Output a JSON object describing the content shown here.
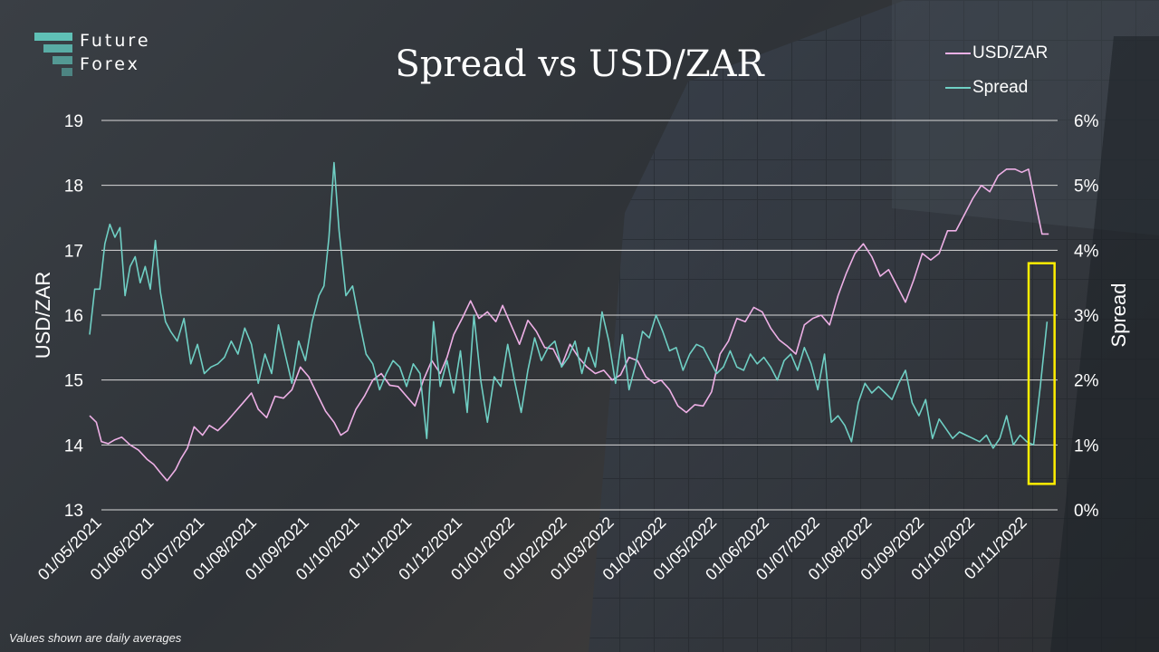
{
  "logo": {
    "line1": "Future",
    "line2": "Forex"
  },
  "footnote": "Values shown are daily averages",
  "colors": {
    "usdzar": "#eeb0e6",
    "spread": "#6fcfc4",
    "grid": "#d9d9d9",
    "highlight": "#ffee00"
  },
  "chart_data": {
    "type": "line",
    "title": "Spread vs USD/ZAR",
    "ylabel": "USD/ZAR",
    "y2label": "Spread",
    "ylim": [
      13,
      19
    ],
    "y2lim": [
      0,
      6
    ],
    "yticks": [
      "13",
      "14",
      "15",
      "16",
      "17",
      "18",
      "19"
    ],
    "y2ticks": [
      "0%",
      "1%",
      "2%",
      "3%",
      "4%",
      "5%",
      "6%"
    ],
    "x_domain": [
      "2021-05-01",
      "2022-12-01"
    ],
    "xticks": [
      "01/05/2021",
      "01/06/2021",
      "01/07/2021",
      "01/08/2021",
      "01/09/2021",
      "01/10/2021",
      "01/11/2021",
      "01/12/2021",
      "01/01/2022",
      "01/02/2022",
      "01/03/2022",
      "01/04/2022",
      "01/05/2022",
      "01/06/2022",
      "01/07/2022",
      "01/08/2022",
      "01/09/2022",
      "01/10/2022",
      "01/11/2022"
    ],
    "legend_position": "top-right",
    "grid": true,
    "highlight": {
      "x_range": [
        "2022-11-01",
        "2022-11-18"
      ],
      "y2_range": [
        0.4,
        3.8
      ]
    },
    "series": [
      {
        "name": "USD/ZAR",
        "axis": "left",
        "color": "#eeb0e6",
        "x": [
          "2021-05-01",
          "2021-05-05",
          "2021-05-08",
          "2021-05-12",
          "2021-05-16",
          "2021-05-20",
          "2021-05-25",
          "2021-05-30",
          "2021-06-04",
          "2021-06-08",
          "2021-06-12",
          "2021-06-16",
          "2021-06-21",
          "2021-06-24",
          "2021-06-28",
          "2021-07-02",
          "2021-07-07",
          "2021-07-11",
          "2021-07-16",
          "2021-07-21",
          "2021-07-26",
          "2021-07-31",
          "2021-08-05",
          "2021-08-09",
          "2021-08-14",
          "2021-08-19",
          "2021-08-24",
          "2021-08-29",
          "2021-09-03",
          "2021-09-08",
          "2021-09-13",
          "2021-09-18",
          "2021-09-23",
          "2021-09-27",
          "2021-10-01",
          "2021-10-06",
          "2021-10-11",
          "2021-10-16",
          "2021-10-21",
          "2021-10-26",
          "2021-10-31",
          "2021-11-05",
          "2021-11-10",
          "2021-11-15",
          "2021-11-20",
          "2021-11-25",
          "2021-11-29",
          "2021-12-03",
          "2021-12-08",
          "2021-12-13",
          "2021-12-18",
          "2021-12-23",
          "2021-12-28",
          "2022-01-01",
          "2022-01-06",
          "2022-01-11",
          "2022-01-16",
          "2022-01-21",
          "2022-01-26",
          "2022-01-31",
          "2022-02-05",
          "2022-02-10",
          "2022-02-15",
          "2022-02-20",
          "2022-02-25",
          "2022-03-02",
          "2022-03-07",
          "2022-03-12",
          "2022-03-17",
          "2022-03-22",
          "2022-03-27",
          "2022-04-01",
          "2022-04-05",
          "2022-04-10",
          "2022-04-15",
          "2022-04-20",
          "2022-04-25",
          "2022-04-30",
          "2022-05-05",
          "2022-05-10",
          "2022-05-15",
          "2022-05-20",
          "2022-05-25",
          "2022-05-30",
          "2022-06-04",
          "2022-06-09",
          "2022-06-14",
          "2022-06-19",
          "2022-06-24",
          "2022-06-29",
          "2022-07-04",
          "2022-07-09",
          "2022-07-14",
          "2022-07-19",
          "2022-07-24",
          "2022-07-29",
          "2022-08-03",
          "2022-08-08",
          "2022-08-13",
          "2022-08-18",
          "2022-08-23",
          "2022-08-28",
          "2022-09-02",
          "2022-09-07",
          "2022-09-12",
          "2022-09-17",
          "2022-09-22",
          "2022-09-27",
          "2022-10-02",
          "2022-10-07",
          "2022-10-12",
          "2022-10-17",
          "2022-10-22",
          "2022-10-27",
          "2022-11-01",
          "2022-11-05",
          "2022-11-09",
          "2022-11-13",
          "2022-11-17",
          "2022-11-21"
        ],
        "values": [
          14.45,
          14.35,
          14.05,
          14.02,
          14.08,
          14.12,
          14.0,
          13.92,
          13.78,
          13.7,
          13.57,
          13.45,
          13.62,
          13.78,
          13.95,
          14.28,
          14.15,
          14.3,
          14.22,
          14.35,
          14.5,
          14.65,
          14.8,
          14.55,
          14.42,
          14.75,
          14.72,
          14.85,
          15.2,
          15.05,
          14.78,
          14.52,
          14.35,
          14.15,
          14.22,
          14.55,
          14.75,
          15.0,
          15.1,
          14.92,
          14.9,
          14.75,
          14.6,
          15.0,
          15.3,
          15.1,
          15.35,
          15.7,
          15.95,
          16.22,
          15.95,
          16.05,
          15.9,
          16.15,
          15.85,
          15.55,
          15.92,
          15.75,
          15.5,
          15.48,
          15.22,
          15.55,
          15.35,
          15.2,
          15.1,
          15.15,
          15.0,
          15.08,
          15.35,
          15.3,
          15.05,
          14.95,
          15.0,
          14.85,
          14.6,
          14.5,
          14.62,
          14.6,
          14.82,
          15.4,
          15.6,
          15.95,
          15.9,
          16.12,
          16.05,
          15.8,
          15.62,
          15.52,
          15.4,
          15.85,
          15.95,
          16.0,
          15.85,
          16.3,
          16.65,
          16.95,
          17.1,
          16.9,
          16.6,
          16.7,
          16.45,
          16.2,
          16.55,
          16.95,
          16.85,
          16.95,
          17.3,
          17.3,
          17.55,
          17.8,
          18.0,
          17.9,
          18.15,
          18.25,
          18.25,
          18.2,
          18.25,
          17.75,
          17.25,
          17.25
        ]
      },
      {
        "name": "Spread",
        "axis": "right",
        "color": "#6fcfc4",
        "x": [
          "2021-05-01",
          "2021-05-04",
          "2021-05-07",
          "2021-05-10",
          "2021-05-13",
          "2021-05-16",
          "2021-05-19",
          "2021-05-22",
          "2021-05-25",
          "2021-05-28",
          "2021-05-31",
          "2021-06-03",
          "2021-06-06",
          "2021-06-09",
          "2021-06-12",
          "2021-06-15",
          "2021-06-18",
          "2021-06-22",
          "2021-06-26",
          "2021-06-30",
          "2021-07-04",
          "2021-07-08",
          "2021-07-12",
          "2021-07-16",
          "2021-07-20",
          "2021-07-24",
          "2021-07-28",
          "2021-08-01",
          "2021-08-05",
          "2021-08-09",
          "2021-08-13",
          "2021-08-17",
          "2021-08-21",
          "2021-08-25",
          "2021-08-29",
          "2021-09-02",
          "2021-09-06",
          "2021-09-10",
          "2021-09-14",
          "2021-09-17",
          "2021-09-20",
          "2021-09-23",
          "2021-09-26",
          "2021-09-30",
          "2021-10-04",
          "2021-10-08",
          "2021-10-12",
          "2021-10-16",
          "2021-10-20",
          "2021-10-24",
          "2021-10-28",
          "2021-11-01",
          "2021-11-05",
          "2021-11-09",
          "2021-11-13",
          "2021-11-17",
          "2021-11-21",
          "2021-11-25",
          "2021-11-29",
          "2021-12-03",
          "2021-12-07",
          "2021-12-11",
          "2021-12-15",
          "2021-12-19",
          "2021-12-23",
          "2021-12-27",
          "2021-12-31",
          "2022-01-04",
          "2022-01-08",
          "2022-01-12",
          "2022-01-16",
          "2022-01-20",
          "2022-01-24",
          "2022-01-28",
          "2022-02-01",
          "2022-02-05",
          "2022-02-09",
          "2022-02-13",
          "2022-02-17",
          "2022-02-21",
          "2022-02-25",
          "2022-03-01",
          "2022-03-05",
          "2022-03-09",
          "2022-03-13",
          "2022-03-17",
          "2022-03-21",
          "2022-03-25",
          "2022-03-29",
          "2022-04-02",
          "2022-04-06",
          "2022-04-10",
          "2022-04-14",
          "2022-04-18",
          "2022-04-22",
          "2022-04-26",
          "2022-04-30",
          "2022-05-04",
          "2022-05-08",
          "2022-05-12",
          "2022-05-16",
          "2022-05-20",
          "2022-05-24",
          "2022-05-28",
          "2022-06-01",
          "2022-06-05",
          "2022-06-09",
          "2022-06-13",
          "2022-06-17",
          "2022-06-21",
          "2022-06-25",
          "2022-06-29",
          "2022-07-03",
          "2022-07-07",
          "2022-07-11",
          "2022-07-15",
          "2022-07-19",
          "2022-07-23",
          "2022-07-27",
          "2022-07-31",
          "2022-08-04",
          "2022-08-08",
          "2022-08-12",
          "2022-08-16",
          "2022-08-20",
          "2022-08-24",
          "2022-08-28",
          "2022-09-01",
          "2022-09-05",
          "2022-09-09",
          "2022-09-13",
          "2022-09-17",
          "2022-09-21",
          "2022-09-25",
          "2022-09-29",
          "2022-10-03",
          "2022-10-07",
          "2022-10-11",
          "2022-10-15",
          "2022-10-19",
          "2022-10-23",
          "2022-10-27",
          "2022-10-31",
          "2022-11-04",
          "2022-11-08",
          "2022-11-12",
          "2022-11-16",
          "2022-11-20"
        ],
        "values": [
          2.7,
          3.4,
          3.4,
          4.1,
          4.4,
          4.2,
          4.35,
          3.3,
          3.75,
          3.9,
          3.5,
          3.75,
          3.4,
          4.15,
          3.35,
          2.9,
          2.75,
          2.6,
          2.95,
          2.25,
          2.55,
          2.1,
          2.2,
          2.25,
          2.35,
          2.6,
          2.4,
          2.8,
          2.55,
          1.95,
          2.4,
          2.1,
          2.85,
          2.4,
          1.95,
          2.6,
          2.3,
          2.9,
          3.3,
          3.45,
          4.2,
          5.35,
          4.3,
          3.3,
          3.45,
          2.9,
          2.4,
          2.25,
          1.85,
          2.1,
          2.3,
          2.2,
          1.9,
          2.25,
          2.1,
          1.1,
          2.9,
          1.9,
          2.3,
          1.8,
          2.45,
          1.5,
          3.0,
          2.0,
          1.35,
          2.05,
          1.9,
          2.55,
          2.0,
          1.5,
          2.15,
          2.65,
          2.3,
          2.5,
          2.6,
          2.2,
          2.35,
          2.6,
          2.1,
          2.5,
          2.2,
          3.05,
          2.6,
          1.95,
          2.7,
          1.85,
          2.25,
          2.75,
          2.65,
          3.0,
          2.75,
          2.45,
          2.5,
          2.15,
          2.4,
          2.55,
          2.5,
          2.3,
          2.1,
          2.2,
          2.45,
          2.2,
          2.15,
          2.4,
          2.25,
          2.35,
          2.2,
          2.0,
          2.3,
          2.4,
          2.15,
          2.5,
          2.25,
          1.85,
          2.4,
          1.35,
          1.45,
          1.3,
          1.05,
          1.65,
          1.95,
          1.8,
          1.9,
          1.8,
          1.7,
          1.95,
          2.15,
          1.65,
          1.45,
          1.7,
          1.1,
          1.4,
          1.25,
          1.1,
          1.2,
          1.15,
          1.1,
          1.05,
          1.15,
          0.95,
          1.1,
          1.45,
          1.0,
          1.15,
          1.05,
          1.0,
          1.9,
          2.9
        ]
      }
    ]
  }
}
